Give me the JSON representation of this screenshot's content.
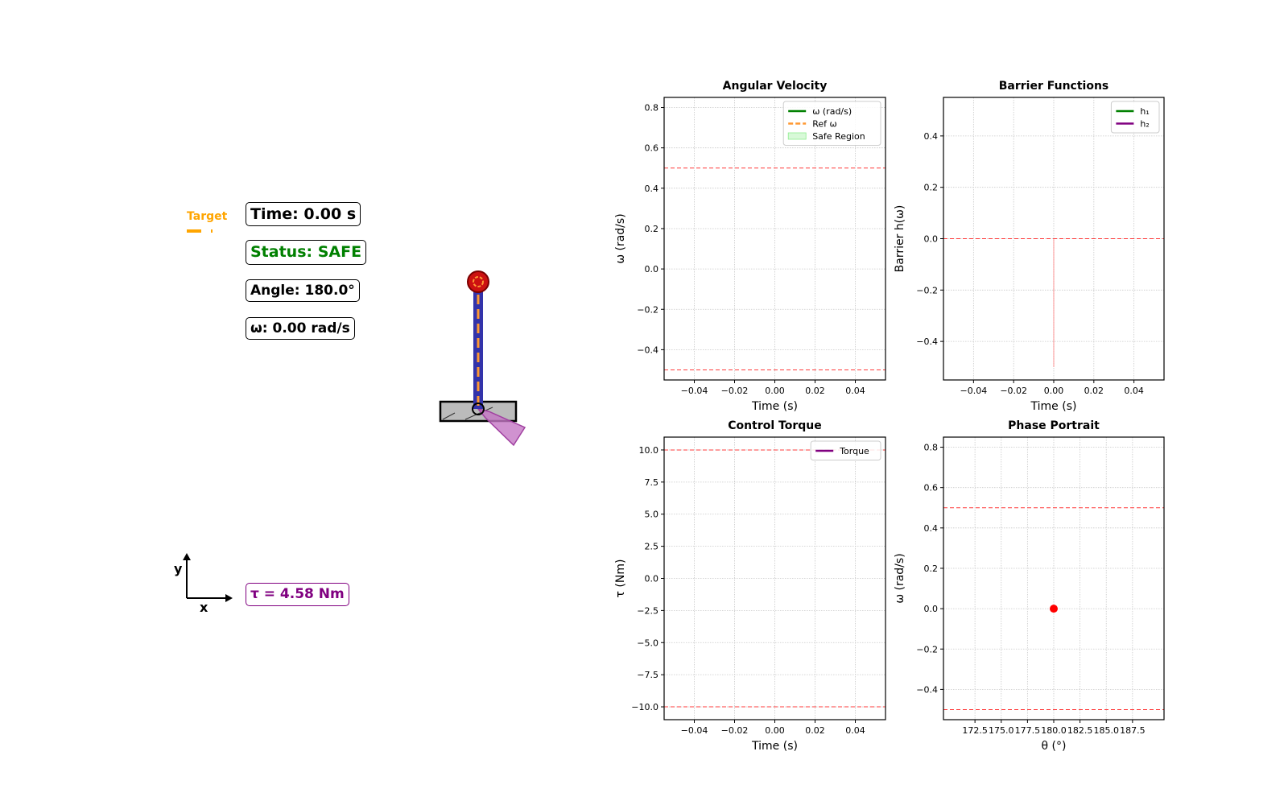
{
  "anim": {
    "target_label": "Target",
    "time_text": "Time: 0.00 s",
    "status_text": "Status: SAFE",
    "angle_text": "Angle: 180.0°",
    "omega_text": "ω: 0.00 rad/s",
    "torque_text": "τ = 4.58 Nm",
    "axis_y": "y",
    "axis_x": "x",
    "colors": {
      "target": "#ffa500",
      "status_safe": "#008000",
      "torque": "#800080",
      "pendulum_rod": "#3333aa",
      "rod_stripe": "#ff9933",
      "bob": "#cc1111"
    }
  },
  "chart_data": [
    {
      "type": "line",
      "title": "Angular Velocity",
      "xlabel": "Time (s)",
      "ylabel": "ω (rad/s)",
      "xlim": [
        -0.055,
        0.055
      ],
      "ylim": [
        -0.55,
        0.85
      ],
      "xticks": [
        -0.04,
        -0.02,
        0.0,
        0.02,
        0.04
      ],
      "xtick_labels": [
        "−0.04",
        "−0.02",
        "0.00",
        "0.02",
        "0.04"
      ],
      "yticks": [
        -0.4,
        -0.2,
        0.0,
        0.2,
        0.4,
        0.6,
        0.8
      ],
      "ytick_labels": [
        "−0.4",
        "−0.2",
        "0.0",
        "0.2",
        "0.4",
        "0.6",
        "0.8"
      ],
      "hlines": [
        0.5,
        -0.5
      ],
      "grid": true,
      "legend": "upper right",
      "legend_entries": [
        {
          "label": "ω (rad/s)",
          "color": "#008000",
          "style": "solid"
        },
        {
          "label": "Ref ω",
          "color": "#ff9933",
          "style": "dashed"
        },
        {
          "label": "Safe Region",
          "color": "#90ee90",
          "style": "patch"
        }
      ],
      "series": []
    },
    {
      "type": "line",
      "title": "Barrier Functions",
      "xlabel": "Time (s)",
      "ylabel": "Barrier h(ω)",
      "xlim": [
        -0.055,
        0.055
      ],
      "ylim": [
        -0.55,
        0.55
      ],
      "xticks": [
        -0.04,
        -0.02,
        0.0,
        0.02,
        0.04
      ],
      "xtick_labels": [
        "−0.04",
        "−0.02",
        "0.00",
        "0.02",
        "0.04"
      ],
      "yticks": [
        -0.4,
        -0.2,
        0.0,
        0.2,
        0.4
      ],
      "ytick_labels": [
        "−0.4",
        "−0.2",
        "0.0",
        "0.2",
        "0.4"
      ],
      "hlines": [
        0.0
      ],
      "vlines": [
        {
          "x": 0.0,
          "y0": -0.5,
          "y1": 0.0
        }
      ],
      "grid": true,
      "legend": "upper right",
      "legend_entries": [
        {
          "label": "h₁",
          "color": "#008000",
          "style": "solid"
        },
        {
          "label": "h₂",
          "color": "#800080",
          "style": "solid"
        }
      ],
      "series": []
    },
    {
      "type": "line",
      "title": "Control Torque",
      "xlabel": "Time (s)",
      "ylabel": "τ (Nm)",
      "xlim": [
        -0.055,
        0.055
      ],
      "ylim": [
        -11.0,
        11.0
      ],
      "xticks": [
        -0.04,
        -0.02,
        0.0,
        0.02,
        0.04
      ],
      "xtick_labels": [
        "−0.04",
        "−0.02",
        "0.00",
        "0.02",
        "0.04"
      ],
      "yticks": [
        -10.0,
        -7.5,
        -5.0,
        -2.5,
        0.0,
        2.5,
        5.0,
        7.5,
        10.0
      ],
      "ytick_labels": [
        "−10.0",
        "−7.5",
        "−5.0",
        "−2.5",
        "0.0",
        "2.5",
        "5.0",
        "7.5",
        "10.0"
      ],
      "hlines": [
        10.0,
        -10.0
      ],
      "grid": true,
      "legend": "upper right",
      "legend_entries": [
        {
          "label": "Torque",
          "color": "#800080",
          "style": "solid"
        }
      ],
      "series": []
    },
    {
      "type": "scatter",
      "title": "Phase Portrait",
      "xlabel": "θ (°)",
      "ylabel": "ω (rad/s)",
      "xlim": [
        169.5,
        190.5
      ],
      "ylim": [
        -0.55,
        0.85
      ],
      "xticks": [
        172.5,
        175.0,
        177.5,
        180.0,
        182.5,
        185.0,
        187.5
      ],
      "xtick_labels": [
        "172.5",
        "175.0",
        "177.5",
        "180.0",
        "182.5",
        "185.0",
        "187.5"
      ],
      "yticks": [
        -0.4,
        -0.2,
        0.0,
        0.2,
        0.4,
        0.6,
        0.8
      ],
      "ytick_labels": [
        "−0.4",
        "−0.2",
        "0.0",
        "0.2",
        "0.4",
        "0.6",
        "0.8"
      ],
      "hlines": [
        0.5,
        -0.5
      ],
      "grid": true,
      "points": [
        {
          "x": 180.0,
          "y": 0.0,
          "color": "#ff0000"
        }
      ],
      "series": []
    }
  ]
}
